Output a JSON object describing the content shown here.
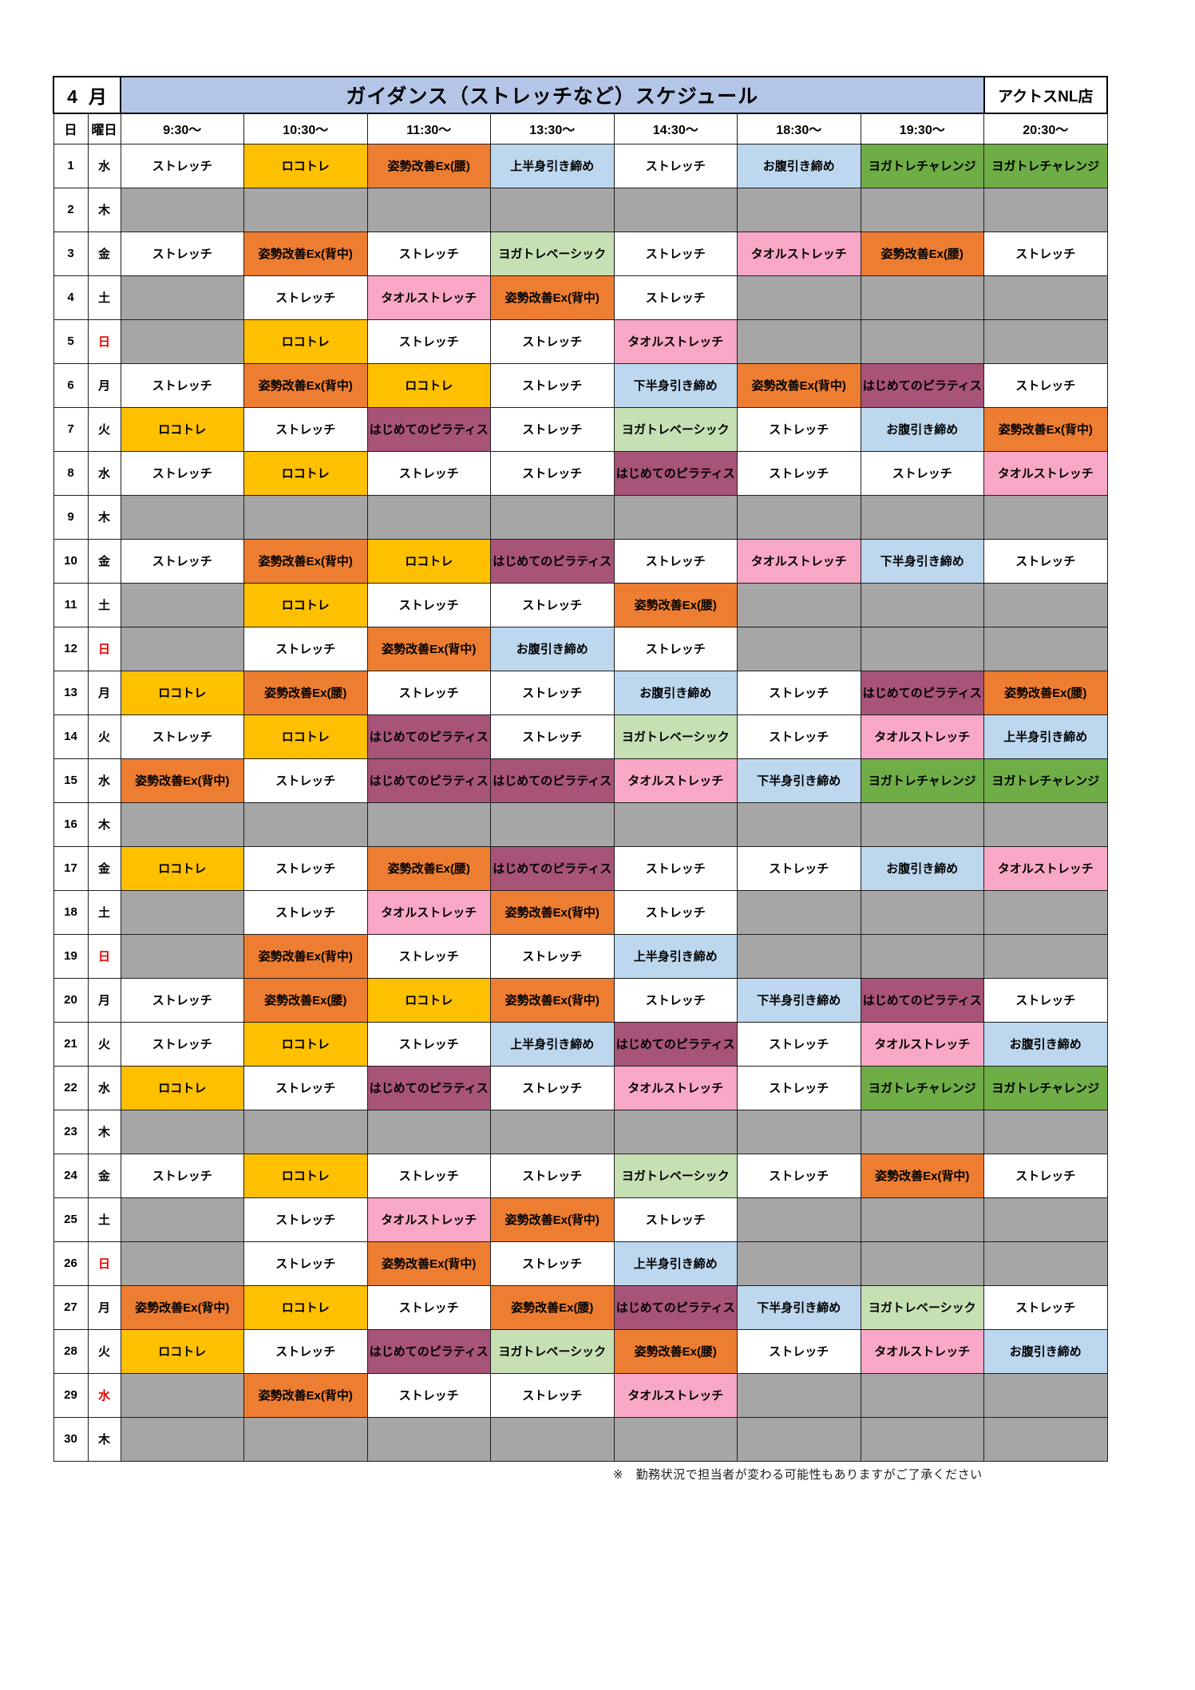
{
  "header": {
    "month_number": "4",
    "month_label": "月",
    "title": "ガイダンス（ストレッチなど）スケジュール",
    "store": "アクトスNL店",
    "title_bg": "#b4c6e7"
  },
  "columns": {
    "day": "日",
    "weekday": "曜日",
    "times": [
      "9:30～",
      "10:30～",
      "11:30～",
      "13:30～",
      "14:30～",
      "18:30～",
      "19:30～",
      "20:30～"
    ]
  },
  "classes": {
    "stretch": {
      "label": "ストレッチ",
      "bg": "#ffffff",
      "text": "#000000"
    },
    "loco": {
      "label": "ロコトレ",
      "bg": "#ffc000",
      "text": "#000000"
    },
    "posture_hip": {
      "label": "姿勢改善Ex(腰)",
      "bg": "#ed7d31",
      "text": "#000000"
    },
    "posture_back": {
      "label": "姿勢改善Ex(背中)",
      "bg": "#ed7d31",
      "text": "#000000"
    },
    "upper": {
      "label": "上半身引き締め",
      "bg": "#bdd7ee",
      "text": "#000000"
    },
    "belly": {
      "label": "お腹引き締め",
      "bg": "#bdd7ee",
      "text": "#000000"
    },
    "lower": {
      "label": "下半身引き締め",
      "bg": "#bdd7ee",
      "text": "#000000"
    },
    "yoga_challenge": {
      "label": "ヨガトレチャレンジ",
      "bg": "#6fad47",
      "text": "#000000"
    },
    "yoga_basic": {
      "label": "ヨガトレベーシック",
      "bg": "#c6e0b4",
      "text": "#000000"
    },
    "towel": {
      "label": "タオルストレッチ",
      "bg": "#f9a7c6",
      "text": "#000000"
    },
    "pilates": {
      "label": "はじめてのピラティス",
      "bg": "#a85378",
      "text": "#000000"
    }
  },
  "colors": {
    "empty_cell": "#a6a6a6",
    "holiday_weekday": "#e60000",
    "grid_line": "#1f1f1f"
  },
  "schedule": [
    {
      "day": "1",
      "weekday": "水",
      "red": false,
      "slots": [
        "stretch",
        "loco",
        "posture_hip",
        "upper",
        "stretch",
        "belly",
        "yoga_challenge",
        "yoga_challenge"
      ]
    },
    {
      "day": "2",
      "weekday": "木",
      "red": false,
      "slots": [
        "",
        "",
        "",
        "",
        "",
        "",
        "",
        ""
      ]
    },
    {
      "day": "3",
      "weekday": "金",
      "red": false,
      "slots": [
        "stretch",
        "posture_back",
        "stretch",
        "yoga_basic",
        "stretch",
        "towel",
        "posture_hip",
        "stretch"
      ]
    },
    {
      "day": "4",
      "weekday": "土",
      "red": false,
      "slots": [
        "",
        "stretch",
        "towel",
        "posture_back",
        "stretch",
        "",
        "",
        ""
      ]
    },
    {
      "day": "5",
      "weekday": "日",
      "red": true,
      "slots": [
        "",
        "loco",
        "stretch",
        "stretch",
        "towel",
        "",
        "",
        ""
      ]
    },
    {
      "day": "6",
      "weekday": "月",
      "red": false,
      "slots": [
        "stretch",
        "posture_back",
        "loco",
        "stretch",
        "lower",
        "posture_back",
        "pilates",
        "stretch"
      ]
    },
    {
      "day": "7",
      "weekday": "火",
      "red": false,
      "slots": [
        "loco",
        "stretch",
        "pilates",
        "stretch",
        "yoga_basic",
        "stretch",
        "belly",
        "posture_back"
      ]
    },
    {
      "day": "8",
      "weekday": "水",
      "red": false,
      "slots": [
        "stretch",
        "loco",
        "stretch",
        "stretch",
        "pilates",
        "stretch",
        "stretch",
        "towel"
      ]
    },
    {
      "day": "9",
      "weekday": "木",
      "red": false,
      "slots": [
        "",
        "",
        "",
        "",
        "",
        "",
        "",
        ""
      ]
    },
    {
      "day": "10",
      "weekday": "金",
      "red": false,
      "slots": [
        "stretch",
        "posture_back",
        "loco",
        "pilates",
        "stretch",
        "towel",
        "lower",
        "stretch"
      ]
    },
    {
      "day": "11",
      "weekday": "土",
      "red": false,
      "slots": [
        "",
        "loco",
        "stretch",
        "stretch",
        "posture_hip",
        "",
        "",
        ""
      ]
    },
    {
      "day": "12",
      "weekday": "日",
      "red": true,
      "slots": [
        "",
        "stretch",
        "posture_back",
        "belly",
        "stretch",
        "",
        "",
        ""
      ]
    },
    {
      "day": "13",
      "weekday": "月",
      "red": false,
      "slots": [
        "loco",
        "posture_hip",
        "stretch",
        "stretch",
        "belly",
        "stretch",
        "pilates",
        "posture_hip"
      ]
    },
    {
      "day": "14",
      "weekday": "火",
      "red": false,
      "slots": [
        "stretch",
        "loco",
        "pilates",
        "stretch",
        "yoga_basic",
        "stretch",
        "towel",
        "upper"
      ]
    },
    {
      "day": "15",
      "weekday": "水",
      "red": false,
      "slots": [
        "posture_back",
        "stretch",
        "pilates",
        "pilates",
        "towel",
        "lower",
        "yoga_challenge",
        "yoga_challenge"
      ]
    },
    {
      "day": "16",
      "weekday": "木",
      "red": false,
      "slots": [
        "",
        "",
        "",
        "",
        "",
        "",
        "",
        ""
      ]
    },
    {
      "day": "17",
      "weekday": "金",
      "red": false,
      "slots": [
        "loco",
        "stretch",
        "posture_hip",
        "pilates",
        "stretch",
        "stretch",
        "belly",
        "towel"
      ]
    },
    {
      "day": "18",
      "weekday": "土",
      "red": false,
      "slots": [
        "",
        "stretch",
        "towel",
        "posture_back",
        "stretch",
        "",
        "",
        ""
      ]
    },
    {
      "day": "19",
      "weekday": "日",
      "red": true,
      "slots": [
        "",
        "posture_back",
        "stretch",
        "stretch",
        "upper",
        "",
        "",
        ""
      ]
    },
    {
      "day": "20",
      "weekday": "月",
      "red": false,
      "slots": [
        "stretch",
        "posture_hip",
        "loco",
        "posture_back",
        "stretch",
        "lower",
        "pilates",
        "stretch"
      ]
    },
    {
      "day": "21",
      "weekday": "火",
      "red": false,
      "slots": [
        "stretch",
        "loco",
        "stretch",
        "upper",
        "pilates",
        "stretch",
        "towel",
        "belly"
      ]
    },
    {
      "day": "22",
      "weekday": "水",
      "red": false,
      "slots": [
        "loco",
        "stretch",
        "pilates",
        "stretch",
        "towel",
        "stretch",
        "yoga_challenge",
        "yoga_challenge"
      ]
    },
    {
      "day": "23",
      "weekday": "木",
      "red": false,
      "slots": [
        "",
        "",
        "",
        "",
        "",
        "",
        "",
        ""
      ]
    },
    {
      "day": "24",
      "weekday": "金",
      "red": false,
      "slots": [
        "stretch",
        "loco",
        "stretch",
        "stretch",
        "yoga_basic",
        "stretch",
        "posture_back",
        "stretch"
      ]
    },
    {
      "day": "25",
      "weekday": "土",
      "red": false,
      "slots": [
        "",
        "stretch",
        "towel",
        "posture_back",
        "stretch",
        "",
        "",
        ""
      ]
    },
    {
      "day": "26",
      "weekday": "日",
      "red": true,
      "slots": [
        "",
        "stretch",
        "posture_back",
        "stretch",
        "upper",
        "",
        "",
        ""
      ]
    },
    {
      "day": "27",
      "weekday": "月",
      "red": false,
      "slots": [
        "posture_back",
        "loco",
        "stretch",
        "posture_hip",
        "pilates",
        "lower",
        "yoga_basic",
        "stretch"
      ]
    },
    {
      "day": "28",
      "weekday": "火",
      "red": false,
      "slots": [
        "loco",
        "stretch",
        "pilates",
        "yoga_basic",
        "posture_hip",
        "stretch",
        "towel",
        "belly"
      ]
    },
    {
      "day": "29",
      "weekday": "水",
      "red": true,
      "slots": [
        "",
        "posture_back",
        "stretch",
        "stretch",
        "towel",
        "",
        "",
        ""
      ]
    },
    {
      "day": "30",
      "weekday": "木",
      "red": false,
      "slots": [
        "",
        "",
        "",
        "",
        "",
        "",
        "",
        ""
      ]
    }
  ],
  "footer": {
    "note": "※　勤務状況で担当者が変わる可能性もありますがご了承ください"
  }
}
